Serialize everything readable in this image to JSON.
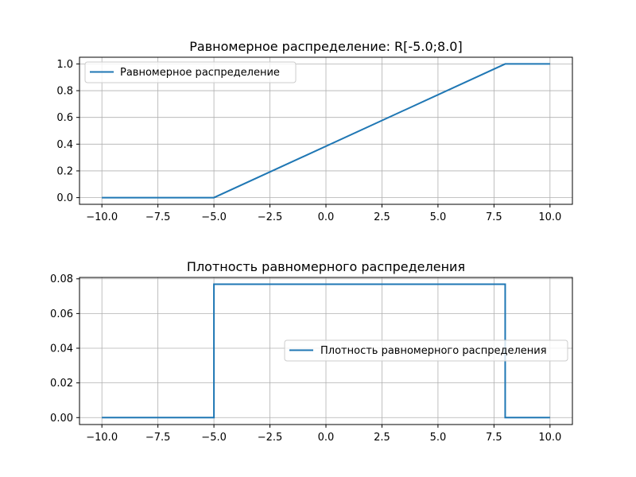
{
  "chart_data": [
    {
      "type": "line",
      "title": "Равномерное распределение: R[-5.0;8.0]",
      "xlabel": "",
      "ylabel": "",
      "xlim": [
        -11.0,
        11.0
      ],
      "ylim": [
        -0.05,
        1.05
      ],
      "xticks": [
        -10.0,
        -7.5,
        -5.0,
        -2.5,
        0.0,
        2.5,
        5.0,
        7.5,
        10.0
      ],
      "xtick_labels": [
        "−10.0",
        "−7.5",
        "−5.0",
        "−2.5",
        "0.0",
        "2.5",
        "5.0",
        "7.5",
        "10.0"
      ],
      "yticks": [
        0.0,
        0.2,
        0.4,
        0.6,
        0.8,
        1.0
      ],
      "ytick_labels": [
        "0.0",
        "0.2",
        "0.4",
        "0.6",
        "0.8",
        "1.0"
      ],
      "grid": true,
      "legend_position": "upper-left",
      "series": [
        {
          "name": "Равномерное распределение",
          "color": "#1f77b4",
          "x": [
            -10.0,
            -5.0,
            8.0,
            10.0
          ],
          "y": [
            0.0,
            0.0,
            1.0,
            1.0
          ]
        }
      ]
    },
    {
      "type": "line",
      "title": "Плотность равномерного распределения",
      "xlabel": "",
      "ylabel": "",
      "xlim": [
        -11.0,
        11.0
      ],
      "ylim": [
        -0.004,
        0.0808
      ],
      "xticks": [
        -10.0,
        -7.5,
        -5.0,
        -2.5,
        0.0,
        2.5,
        5.0,
        7.5,
        10.0
      ],
      "xtick_labels": [
        "−10.0",
        "−7.5",
        "−5.0",
        "−2.5",
        "0.0",
        "2.5",
        "5.0",
        "7.5",
        "10.0"
      ],
      "yticks": [
        0.0,
        0.02,
        0.04,
        0.06,
        0.08
      ],
      "ytick_labels": [
        "0.00",
        "0.02",
        "0.04",
        "0.06",
        "0.08"
      ],
      "grid": true,
      "legend_position": "center-right",
      "series": [
        {
          "name": "Плотность равномерного распределения",
          "color": "#1f77b4",
          "x": [
            -10.0,
            -5.0,
            -5.0,
            8.0,
            8.0,
            10.0
          ],
          "y": [
            0.0,
            0.0,
            0.0769,
            0.0769,
            0.0,
            0.0
          ]
        }
      ]
    }
  ]
}
